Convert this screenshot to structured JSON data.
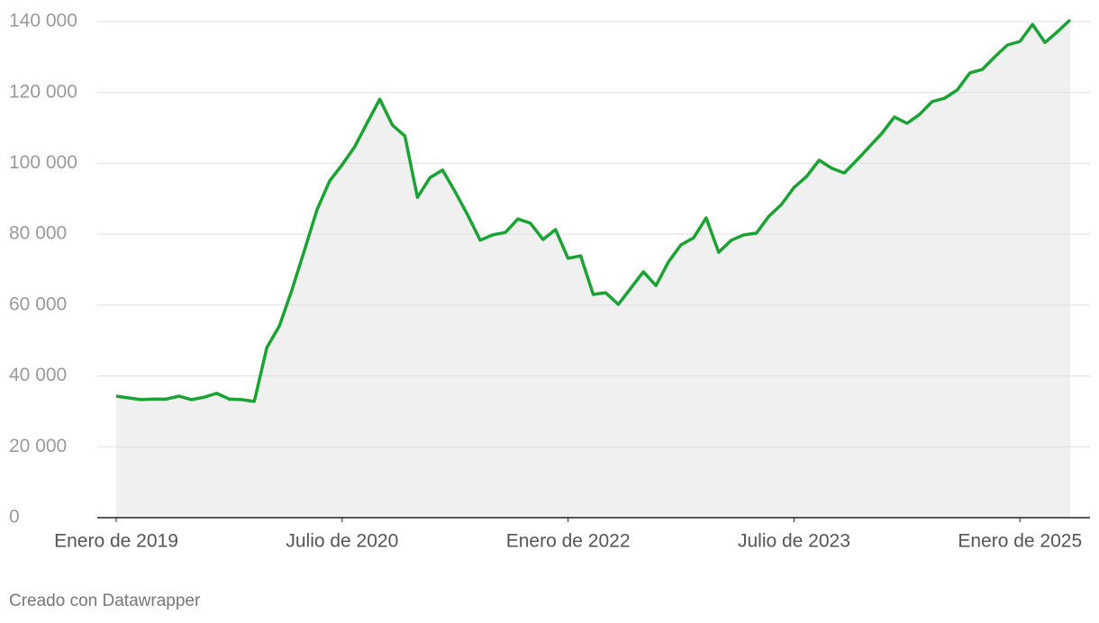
{
  "chart_data": {
    "type": "line",
    "x": [
      "2019-01",
      "2019-02",
      "2019-03",
      "2019-04",
      "2019-05",
      "2019-06",
      "2019-07",
      "2019-08",
      "2019-09",
      "2019-10",
      "2019-11",
      "2019-12",
      "2020-01",
      "2020-02",
      "2020-03",
      "2020-04",
      "2020-05",
      "2020-06",
      "2020-07",
      "2020-08",
      "2020-09",
      "2020-10",
      "2020-11",
      "2020-12",
      "2021-01",
      "2021-02",
      "2021-03",
      "2021-04",
      "2021-05",
      "2021-06",
      "2021-07",
      "2021-08",
      "2021-09",
      "2021-10",
      "2021-11",
      "2021-12",
      "2022-01",
      "2022-02",
      "2022-03",
      "2022-04",
      "2022-05",
      "2022-06",
      "2022-07",
      "2022-08",
      "2022-09",
      "2022-10",
      "2022-11",
      "2022-12",
      "2023-01",
      "2023-02",
      "2023-03",
      "2023-04",
      "2023-05",
      "2023-06",
      "2023-07",
      "2023-08",
      "2023-09",
      "2023-10",
      "2023-11",
      "2023-12",
      "2024-01",
      "2024-02",
      "2024-03",
      "2024-04",
      "2024-05",
      "2024-06",
      "2024-07",
      "2024-08",
      "2024-09",
      "2024-10",
      "2024-11",
      "2024-12",
      "2025-01",
      "2025-02",
      "2025-03",
      "2025-04",
      "2025-05"
    ],
    "values": [
      34300,
      33800,
      33300,
      33500,
      33500,
      34300,
      33300,
      34000,
      35100,
      33500,
      33300,
      32800,
      48000,
      54100,
      64300,
      75500,
      86900,
      95000,
      99600,
      104700,
      111500,
      118100,
      110800,
      107700,
      90400,
      96000,
      98100,
      92000,
      85400,
      78300,
      79800,
      80500,
      84300,
      83100,
      78500,
      81300,
      73200,
      73900,
      63000,
      63500,
      60200,
      64800,
      69400,
      65500,
      72200,
      77000,
      79000,
      84600,
      74900,
      78300,
      79800,
      80300,
      85100,
      88400,
      93200,
      96300,
      100900,
      98600,
      97300,
      100900,
      104700,
      108500,
      113100,
      111300,
      113800,
      117400,
      118400,
      120700,
      125500,
      126500,
      130100,
      133400,
      134400,
      139200,
      134100,
      137200,
      140500
    ],
    "color": "#1aa333",
    "area_color": "#f0f0f0",
    "xticks": [
      {
        "value": "2019-01",
        "label": "Enero de 2019"
      },
      {
        "value": "2020-07",
        "label": "Julio de 2020"
      },
      {
        "value": "2022-01",
        "label": "Enero de 2022"
      },
      {
        "value": "2023-07",
        "label": "Julio de 2023"
      },
      {
        "value": "2025-01",
        "label": "Enero de 2025"
      }
    ],
    "ylim": [
      0,
      140000
    ],
    "yticks": [
      0,
      {
        "value": 20000,
        "label": "20 000"
      },
      {
        "value": 40000,
        "label": "40 000"
      },
      {
        "value": 60000,
        "label": "60 000"
      },
      {
        "value": 80000,
        "label": "80 000"
      },
      {
        "value": 100000,
        "label": "100 000"
      },
      {
        "value": 120000,
        "label": "120 000"
      },
      {
        "value": 140000,
        "label": "140 000"
      }
    ],
    "grid": true,
    "credit": "Creado con Datawrapper"
  }
}
